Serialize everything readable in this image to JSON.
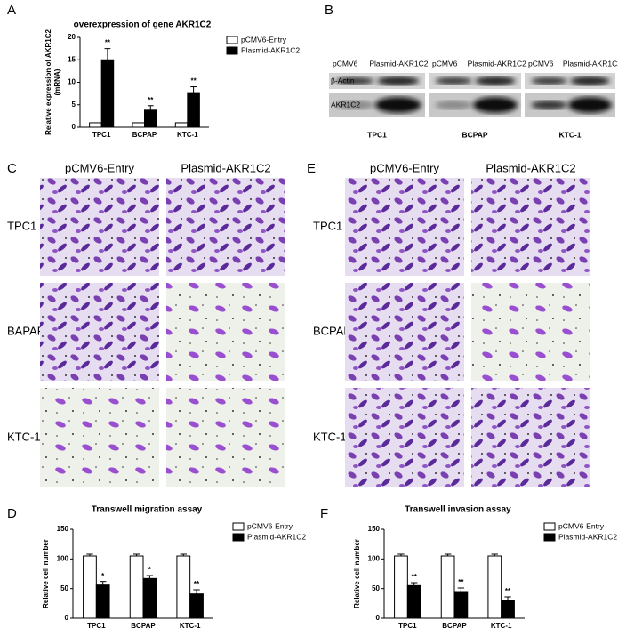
{
  "panel_letters": [
    "A",
    "B",
    "C",
    "E",
    "D",
    "F"
  ],
  "blot": {
    "rows": [
      "β-Actin",
      "AKR1C2"
    ],
    "groups": [
      {
        "lanes": [
          "pCMV6",
          "Plasmid-AKR1C2"
        ],
        "cell": "TPC1"
      },
      {
        "lanes": [
          "pCMV6",
          "Plasmid-AKR1C2"
        ],
        "cell": "BCPAP"
      },
      {
        "lanes": [
          "pCMV6",
          "Plasmid-AKR1C2"
        ],
        "cell": "KTC-1"
      }
    ]
  },
  "panel_C": {
    "columns": [
      "pCMV6-Entry",
      "Plasmid-AKR1C2"
    ],
    "rows": [
      "TPC1",
      "BAPAP",
      "KTC-1"
    ]
  },
  "panel_E": {
    "columns": [
      "pCMV6-Entry",
      "Plasmid-AKR1C2"
    ],
    "rows": [
      "TPC1",
      "BCPAP",
      "KTC-1"
    ]
  },
  "chart_data": [
    {
      "type": "bar",
      "title": "overexpression of gene AKR1C2",
      "y_label": [
        "Relative expression of AKR1C2",
        "(mRNA)"
      ],
      "categories": [
        "TPC1",
        "BCPAP",
        "KTC-1"
      ],
      "series": [
        {
          "name": "pCMV6-Entry",
          "color": "#ffffff",
          "values": [
            1,
            1,
            1
          ]
        },
        {
          "name": "Plasmid-AKR1C2",
          "color": "#000000",
          "values": [
            15,
            3.8,
            7.7
          ],
          "errors": [
            2.5,
            1,
            1.3
          ]
        }
      ],
      "annotations": [
        "**",
        "**",
        "**"
      ],
      "ylim": [
        0,
        20
      ],
      "yticks": [
        0,
        5,
        10,
        15,
        20
      ],
      "legend": "right"
    },
    {
      "type": "bar",
      "title": "Transwell migration assay",
      "y_label": [
        "Relative cell number"
      ],
      "categories": [
        "TPC1",
        "BCPAP",
        "KTC-1"
      ],
      "series": [
        {
          "name": "pCMV6-Entry",
          "color": "#ffffff",
          "values": [
            105,
            105,
            105
          ],
          "errors": [
            3,
            3,
            3
          ]
        },
        {
          "name": "Plasmid-AKR1C2",
          "color": "#000000",
          "values": [
            56,
            67,
            41
          ],
          "errors": [
            6,
            5,
            7
          ]
        }
      ],
      "annotations": [
        "*",
        "*",
        "**"
      ],
      "ylim": [
        0,
        150
      ],
      "yticks": [
        0,
        50,
        100,
        150
      ],
      "legend": "right"
    },
    {
      "type": "bar",
      "title": "Transwell invasion assay",
      "y_label": [
        "Relative cell number"
      ],
      "categories": [
        "TPC1",
        "BCPAP",
        "KTC-1"
      ],
      "series": [
        {
          "name": "pCMV6-Entry",
          "color": "#ffffff",
          "values": [
            105,
            105,
            105
          ],
          "errors": [
            3,
            3,
            3
          ]
        },
        {
          "name": "Plasmid-AKR1C2",
          "color": "#000000",
          "values": [
            55,
            45,
            30
          ],
          "errors": [
            5,
            6,
            6
          ]
        }
      ],
      "annotations": [
        "**",
        "**",
        "**"
      ],
      "ylim": [
        0,
        150
      ],
      "yticks": [
        0,
        50,
        100,
        150
      ],
      "legend": "right"
    }
  ]
}
